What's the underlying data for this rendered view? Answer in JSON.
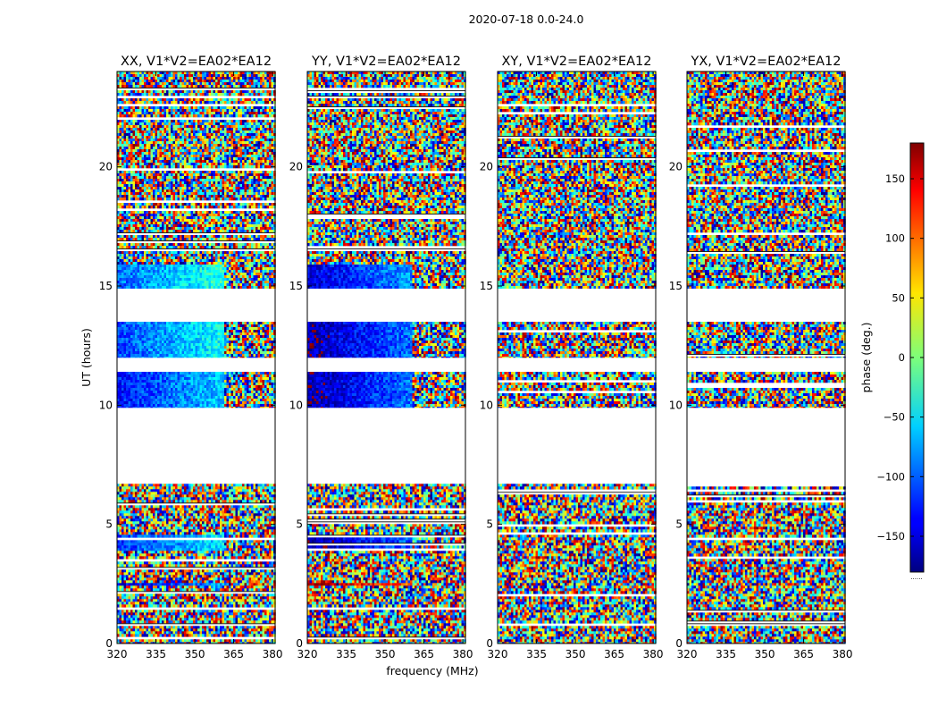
{
  "figure_title": "2020-07-18 0.0-24.0",
  "xlabel": "frequency (MHz)",
  "ylabel": "UT (hours)",
  "colorbar": {
    "label": "phase (deg.)",
    "range": [
      -180,
      180
    ],
    "ticks": [
      150,
      100,
      50,
      0,
      -50,
      -100,
      -150
    ],
    "tick_labels": [
      "150",
      "100",
      "50",
      "0",
      "−50",
      "−100",
      "−150"
    ],
    "extra_label": "......",
    "colormap": "jet"
  },
  "chart_data": [
    {
      "type": "heatmap",
      "title": "XX, V1*V2=EA02*EA12",
      "xlim": [
        320,
        381
      ],
      "ylim": [
        0,
        24
      ],
      "xticks": [
        320,
        335,
        350,
        365,
        380
      ],
      "yticks": [
        0,
        5,
        10,
        15,
        20
      ],
      "value_unit": "phase (deg.)",
      "data_blocks_ut_hours": [
        [
          0,
          6.7
        ],
        [
          9.9,
          11.4
        ],
        [
          12.0,
          13.5
        ],
        [
          14.9,
          24.0
        ]
      ],
      "flagged_gaps_ut_hours": [
        [
          6.7,
          9.9
        ],
        [
          11.4,
          12.0
        ],
        [
          13.5,
          14.9
        ]
      ],
      "coherent_rows": [
        {
          "ut": [
            2.45,
            2.65
          ],
          "phase_deg": -150,
          "freq_mhz": [
            320,
            363
          ]
        },
        {
          "ut": [
            4.0,
            4.65
          ],
          "phase_deg": -120,
          "freq_mhz": [
            320,
            361
          ]
        },
        {
          "ut": [
            9.9,
            11.4
          ],
          "phase_deg": -130,
          "freq_mhz": [
            320,
            361
          ]
        },
        {
          "ut": [
            12.0,
            13.5
          ],
          "phase_deg": -110,
          "freq_mhz": [
            320,
            361
          ]
        },
        {
          "ut": [
            14.9,
            16.0
          ],
          "phase_deg": -100,
          "freq_mhz": [
            320,
            361
          ]
        }
      ],
      "elsewhere": "random phase (noise)"
    },
    {
      "type": "heatmap",
      "title": "YY, V1*V2=EA02*EA12",
      "xlim": [
        320,
        381
      ],
      "ylim": [
        0,
        24
      ],
      "xticks": [
        320,
        335,
        350,
        365,
        380
      ],
      "yticks": [
        0,
        5,
        10,
        15,
        20
      ],
      "value_unit": "phase (deg.)",
      "data_blocks_ut_hours": [
        [
          0,
          6.7
        ],
        [
          9.9,
          11.4
        ],
        [
          12.0,
          13.5
        ],
        [
          14.9,
          24.0
        ]
      ],
      "flagged_gaps_ut_hours": [
        [
          6.7,
          9.9
        ],
        [
          11.4,
          12.0
        ],
        [
          13.5,
          14.9
        ]
      ],
      "coherent_rows": [
        {
          "ut": [
            2.45,
            2.65
          ],
          "phase_deg": 170,
          "freq_mhz": [
            320,
            360
          ]
        },
        {
          "ut": [
            4.0,
            4.65
          ],
          "phase_deg": -170,
          "freq_mhz": [
            320,
            360
          ]
        },
        {
          "ut": [
            9.9,
            11.4
          ],
          "phase_deg": -165,
          "freq_mhz": [
            320,
            360
          ]
        },
        {
          "ut": [
            12.0,
            13.5
          ],
          "phase_deg": -165,
          "freq_mhz": [
            320,
            360
          ]
        },
        {
          "ut": [
            14.9,
            16.0
          ],
          "phase_deg": -150,
          "freq_mhz": [
            320,
            360
          ]
        }
      ],
      "elsewhere": "random phase (noise)"
    },
    {
      "type": "heatmap",
      "title": "XY, V1*V2=EA02*EA12",
      "xlim": [
        320,
        381
      ],
      "ylim": [
        0,
        24
      ],
      "xticks": [
        320,
        335,
        350,
        365,
        380
      ],
      "yticks": [
        0,
        5,
        10,
        15,
        20
      ],
      "value_unit": "phase (deg.)",
      "data_blocks_ut_hours": [
        [
          0,
          6.7
        ],
        [
          9.9,
          11.4
        ],
        [
          12.0,
          13.5
        ],
        [
          14.9,
          24.0
        ]
      ],
      "flagged_gaps_ut_hours": [
        [
          6.7,
          9.9
        ],
        [
          11.4,
          12.0
        ],
        [
          13.5,
          14.9
        ]
      ],
      "coherent_rows": [],
      "elsewhere": "random phase (noise)"
    },
    {
      "type": "heatmap",
      "title": "YX, V1*V2=EA02*EA12",
      "xlim": [
        320,
        381
      ],
      "ylim": [
        0,
        24
      ],
      "xticks": [
        320,
        335,
        350,
        365,
        380
      ],
      "yticks": [
        0,
        5,
        10,
        15,
        20
      ],
      "value_unit": "phase (deg.)",
      "data_blocks_ut_hours": [
        [
          0,
          6.7
        ],
        [
          9.9,
          11.4
        ],
        [
          12.0,
          13.5
        ],
        [
          14.9,
          24.0
        ]
      ],
      "flagged_gaps_ut_hours": [
        [
          6.7,
          9.9
        ],
        [
          11.4,
          12.0
        ],
        [
          13.5,
          14.9
        ]
      ],
      "coherent_rows": [],
      "elsewhere": "random phase (noise)"
    }
  ]
}
